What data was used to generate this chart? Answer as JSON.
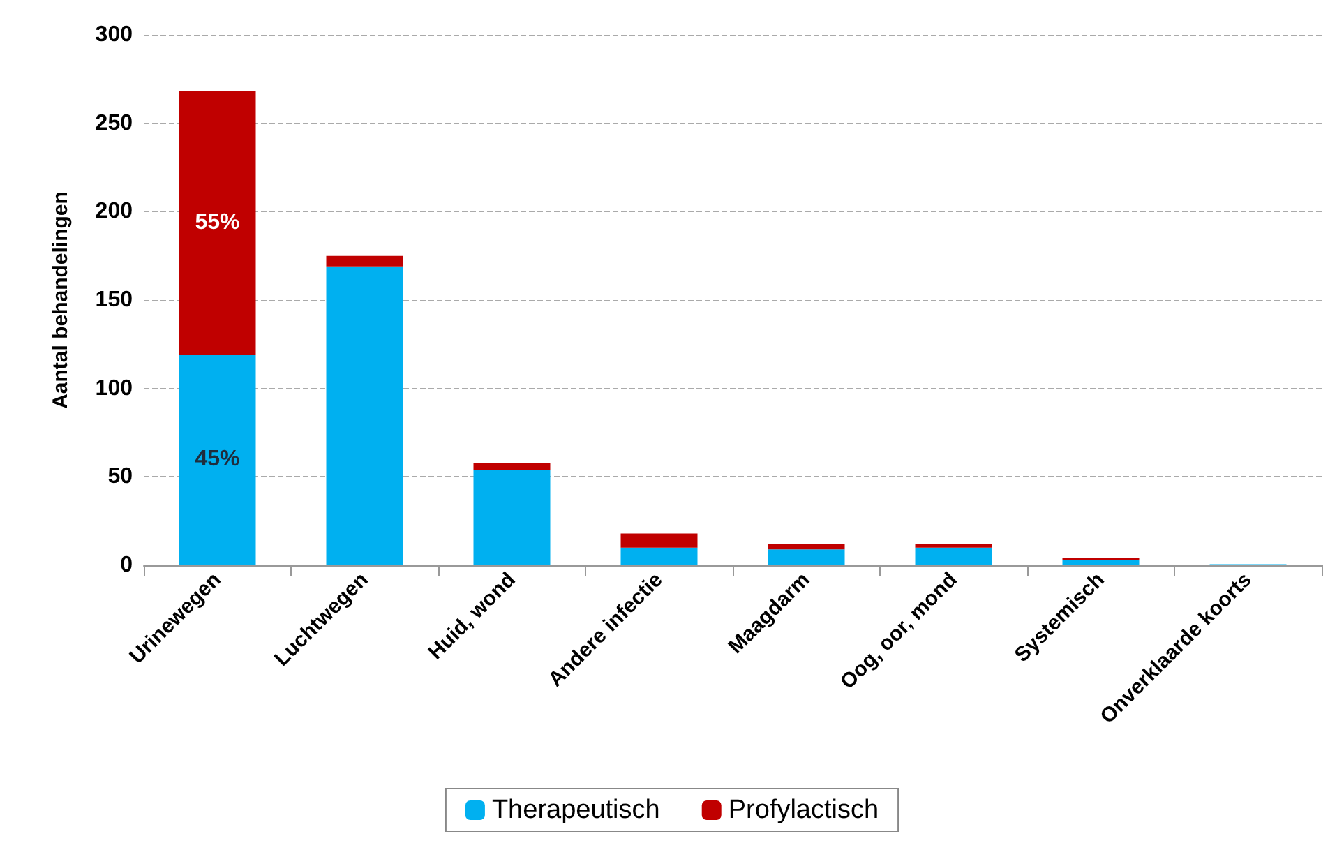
{
  "chart_data": {
    "type": "bar",
    "stacked": true,
    "ylabel": "Aantal behandelingen",
    "categories": [
      "Urinewegen",
      "Luchtwegen",
      "Huid, wond",
      "Andere infectie",
      "Maagdarm",
      "Oog, oor, mond",
      "Systemisch",
      "Onverklaarde koorts"
    ],
    "series": [
      {
        "name": "Therapeutisch",
        "color": "#00b0f0",
        "values": [
          119,
          169,
          54,
          10,
          9,
          10,
          3,
          0.6
        ]
      },
      {
        "name": "Profylactisch",
        "color": "#c00000",
        "values": [
          149,
          6,
          4,
          8,
          3,
          2,
          1,
          0
        ]
      }
    ],
    "annotations": [
      {
        "text": "45%",
        "x": "Urinewegen",
        "y": 60
      },
      {
        "text": "55%",
        "x": "Urinewegen",
        "y": 194
      }
    ],
    "ylim": [
      0,
      300
    ],
    "yticks": [
      0,
      50,
      100,
      150,
      200,
      250,
      300
    ],
    "grid": "y",
    "legend": "bottom"
  }
}
